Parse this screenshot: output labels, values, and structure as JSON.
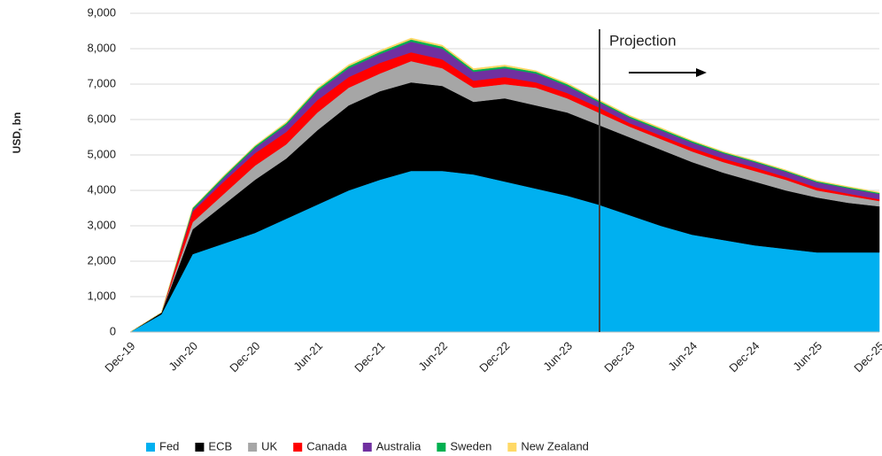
{
  "chart_data": {
    "type": "stacked-area",
    "y_label": "USD, bn",
    "annotation": "Projection",
    "categories": [
      "Dec-19",
      null,
      "Jun-20",
      null,
      "Dec-20",
      null,
      "Jun-21",
      null,
      "Dec-21",
      null,
      "Jun-22",
      null,
      "Dec-22",
      null,
      "Jun-23",
      null,
      "Dec-23",
      null,
      "Jun-24",
      null,
      "Dec-24",
      null,
      "Jun-25",
      null,
      "Dec-25"
    ],
    "series": [
      {
        "name": "Fed",
        "color": "#00b0f0",
        "values": [
          0,
          500,
          2200,
          2500,
          2800,
          3200,
          3600,
          4000,
          4300,
          4550,
          4550,
          4450,
          4250,
          4050,
          3850,
          3600,
          3300,
          3000,
          2750,
          2600,
          2450,
          2350,
          2250,
          2250,
          2250
        ]
      },
      {
        "name": "ECB",
        "color": "#000000",
        "values": [
          0,
          50,
          700,
          1100,
          1500,
          1700,
          2100,
          2400,
          2500,
          2500,
          2400,
          2050,
          2350,
          2350,
          2350,
          2250,
          2200,
          2150,
          2050,
          1900,
          1800,
          1650,
          1550,
          1400,
          1300
        ]
      },
      {
        "name": "UK",
        "color": "#a6a6a6",
        "values": [
          0,
          0,
          200,
          300,
          400,
          400,
          500,
          500,
          500,
          600,
          500,
          400,
          400,
          500,
          400,
          350,
          300,
          300,
          300,
          300,
          300,
          300,
          200,
          200,
          150
        ]
      },
      {
        "name": "Canada",
        "color": "#ff0000",
        "values": [
          0,
          0,
          300,
          350,
          350,
          350,
          350,
          300,
          300,
          250,
          250,
          200,
          200,
          150,
          150,
          150,
          100,
          100,
          100,
          100,
          100,
          80,
          80,
          60,
          50
        ]
      },
      {
        "name": "Australia",
        "color": "#7030a0",
        "values": [
          0,
          0,
          50,
          100,
          150,
          200,
          250,
          250,
          250,
          300,
          300,
          250,
          250,
          250,
          200,
          150,
          150,
          150,
          150,
          150,
          150,
          150,
          150,
          150,
          150
        ]
      },
      {
        "name": "Sweden",
        "color": "#00b050",
        "values": [
          0,
          0,
          50,
          50,
          50,
          50,
          60,
          60,
          60,
          60,
          60,
          50,
          50,
          50,
          50,
          40,
          40,
          40,
          40,
          30,
          30,
          30,
          30,
          30,
          30
        ]
      },
      {
        "name": "New Zealand",
        "color": "#ffd966",
        "values": [
          0,
          0,
          10,
          20,
          20,
          30,
          30,
          40,
          40,
          40,
          40,
          40,
          40,
          30,
          30,
          30,
          30,
          30,
          20,
          20,
          20,
          20,
          20,
          20,
          20
        ]
      }
    ],
    "ylim": [
      0,
      9000
    ],
    "yticks": [
      0,
      {
        "value": 1000,
        "label": "1,000"
      },
      {
        "value": 2000,
        "label": "2,000"
      },
      {
        "value": 3000,
        "label": "3,000"
      },
      {
        "value": 4000,
        "label": "4,000"
      },
      {
        "value": 5000,
        "label": "5,000"
      },
      {
        "value": 6000,
        "label": "6,000"
      },
      {
        "value": 7000,
        "label": "7,000"
      },
      {
        "value": 8000,
        "label": "8,000"
      },
      {
        "value": 9000,
        "label": "9,000"
      }
    ],
    "grid": true,
    "legend": "bottom"
  }
}
